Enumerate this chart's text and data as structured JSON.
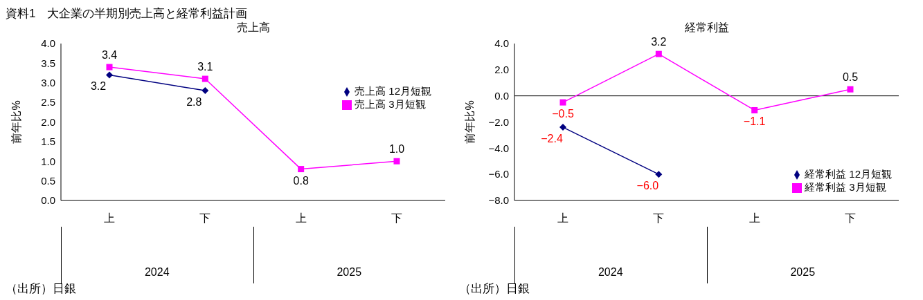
{
  "chart_data": [
    {
      "type": "line",
      "title": "売上高",
      "ylabel": "前年比%",
      "categories": [
        "上",
        "下",
        "上",
        "下"
      ],
      "series": [
        {
          "name": "売上高 12月短観",
          "color": "#000080",
          "marker": "diamond",
          "values": [
            3.2,
            2.8,
            null,
            null
          ],
          "value_labels": [
            "3.2",
            "2.8",
            null,
            null
          ]
        },
        {
          "name": "売上高 3月短観",
          "color": "#ff00ff",
          "marker": "square",
          "values": [
            3.4,
            3.1,
            0.8,
            1.0
          ],
          "value_labels": [
            "3.4",
            "3.1",
            "0.8",
            "1.0"
          ]
        }
      ],
      "ylim": [
        0,
        4
      ],
      "yticks": [
        {
          "value": 0,
          "label": "0.0"
        },
        {
          "value": 0.5,
          "label": "0.5"
        },
        {
          "value": 1,
          "label": "1.0"
        },
        {
          "value": 1.5,
          "label": "1.5"
        },
        {
          "value": 2,
          "label": "2.0"
        },
        {
          "value": 2.5,
          "label": "2.5"
        },
        {
          "value": 3,
          "label": "3.0"
        },
        {
          "value": 3.5,
          "label": "3.5"
        },
        {
          "value": 4,
          "label": "4.0"
        }
      ],
      "grid": false,
      "legend": "right",
      "annotations": [
        "資料1　大企業の半期別売上高と経常利益計画",
        "2024",
        "2025",
        "（出所）日銀"
      ]
    },
    {
      "type": "line",
      "title": "経常利益",
      "ylabel": "前年比%",
      "categories": [
        "上",
        "下",
        "上",
        "下"
      ],
      "series": [
        {
          "name": "経常利益 12月短観",
          "color": "#000080",
          "marker": "diamond",
          "values": [
            -2.4,
            -6.0,
            null,
            null
          ],
          "value_labels": [
            "−2.4",
            "−6.0",
            null,
            null
          ]
        },
        {
          "name": "経常利益 3月短観",
          "color": "#ff00ff",
          "marker": "square",
          "values": [
            -0.5,
            3.2,
            -1.1,
            0.5
          ],
          "value_labels": [
            "−0.5",
            "3.2",
            "−1.1",
            "0.5"
          ]
        }
      ],
      "ylim": [
        -8,
        4
      ],
      "yticks": [
        {
          "value": -8,
          "label": "−8.0"
        },
        {
          "value": -6,
          "label": "−6.0"
        },
        {
          "value": -4,
          "label": "−4.0"
        },
        {
          "value": -2,
          "label": "−2.0"
        },
        {
          "value": 0,
          "label": "0.0"
        },
        {
          "value": 2,
          "label": "2.0"
        },
        {
          "value": 4,
          "label": "4.0"
        }
      ],
      "ref_lines": [
        {
          "axis": "y",
          "value": 0
        }
      ],
      "grid": false,
      "legend": "bottom right",
      "annotations": [
        "2024",
        "2025",
        "（出所）日銀"
      ]
    }
  ]
}
